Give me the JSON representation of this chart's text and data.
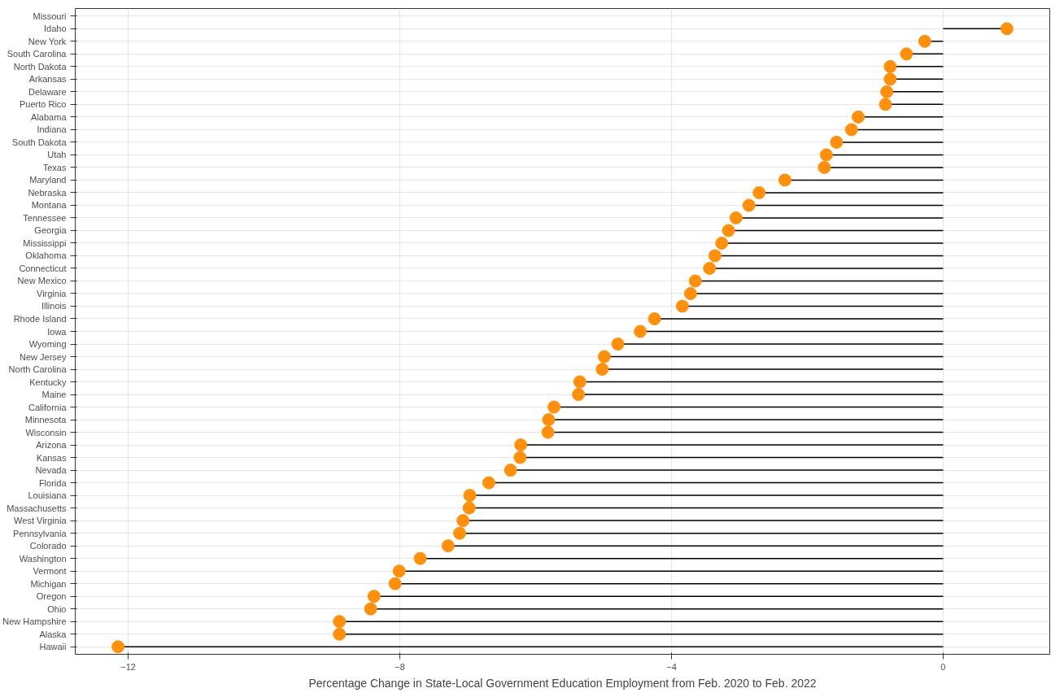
{
  "chart_data": {
    "type": "lollipop",
    "orientation": "horizontal",
    "xlabel": "Percentage Change in State-Local Government Education Employment from Feb. 2020 to Feb. 2022",
    "categories": [
      "Missouri",
      "Idaho",
      "New York",
      "South Carolina",
      "North Dakota",
      "Arkansas",
      "Delaware",
      "Puerto Rico",
      "Alabama",
      "Indiana",
      "South Dakota",
      "Utah",
      "Texas",
      "Maryland",
      "Nebraska",
      "Montana",
      "Tennessee",
      "Georgia",
      "Mississippi",
      "Oklahoma",
      "Connecticut",
      "New Mexico",
      "Virginia",
      "Illinois",
      "Rhode Island",
      "Iowa",
      "Wyoming",
      "New Jersey",
      "North Carolina",
      "Kentucky",
      "Maine",
      "California",
      "Minnesota",
      "Wisconsin",
      "Arizona",
      "Kansas",
      "Nevada",
      "Florida",
      "Louisiana",
      "Massachusetts",
      "West Virginia",
      "Pennsylvania",
      "Colorado",
      "Washington",
      "Vermont",
      "Michigan",
      "Oregon",
      "Ohio",
      "New Hampshire",
      "Alaska",
      "Hawaii"
    ],
    "values": [
      null,
      0.94,
      -0.27,
      -0.54,
      -0.78,
      -0.78,
      -0.83,
      -0.85,
      -1.25,
      -1.35,
      -1.57,
      -1.72,
      -1.75,
      -2.33,
      -2.71,
      -2.86,
      -3.05,
      -3.16,
      -3.26,
      -3.36,
      -3.44,
      -3.65,
      -3.72,
      -3.84,
      -4.25,
      -4.46,
      -4.79,
      -4.99,
      -5.02,
      -5.35,
      -5.37,
      -5.73,
      -5.81,
      -5.82,
      -6.22,
      -6.23,
      -6.37,
      -6.69,
      -6.97,
      -6.98,
      -7.07,
      -7.12,
      -7.29,
      -7.7,
      -8.01,
      -8.07,
      -8.38,
      -8.43,
      -8.89,
      -8.89,
      -12.15
    ],
    "color": "#ff900e",
    "xlim": [
      -12.78,
      1.57
    ],
    "xticks": [
      -12,
      -8,
      -4,
      0
    ],
    "grid": true,
    "marker": "circle"
  }
}
